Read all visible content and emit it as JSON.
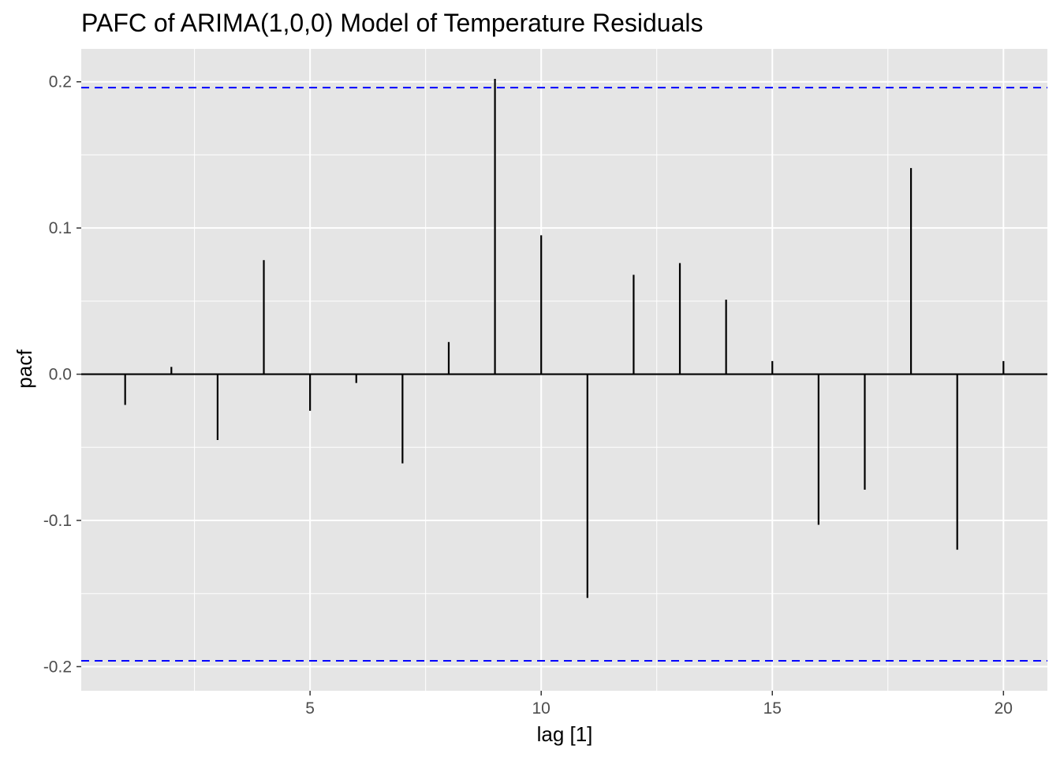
{
  "chart_data": {
    "type": "bar",
    "subtype": "pacf-spikes",
    "title": "PAFC of ARIMA(1,0,0) Model of Temperature Residuals",
    "xlabel": "lag [1]",
    "ylabel": "pacf",
    "x": [
      1,
      2,
      3,
      4,
      5,
      6,
      7,
      8,
      9,
      10,
      11,
      12,
      13,
      14,
      15,
      16,
      17,
      18,
      19,
      20
    ],
    "values": [
      -0.021,
      0.005,
      -0.045,
      0.078,
      -0.025,
      -0.006,
      -0.061,
      0.022,
      0.202,
      0.095,
      -0.153,
      0.068,
      0.076,
      0.051,
      0.009,
      -0.103,
      -0.079,
      0.141,
      -0.12,
      0.009
    ],
    "confidence_band": [
      -0.196,
      0.196
    ],
    "xlim": [
      0.05,
      20.95
    ],
    "ylim": [
      -0.2165,
      0.2225
    ],
    "x_ticks": [
      5,
      10,
      15,
      20
    ],
    "x_tick_labels": [
      "5",
      "10",
      "15",
      "20"
    ],
    "y_ticks": [
      -0.2,
      -0.1,
      0.0,
      0.1,
      0.2
    ],
    "y_tick_labels": [
      "-0.2",
      "-0.1",
      "0.0",
      "0.1",
      "0.2"
    ],
    "grid": true,
    "colors": {
      "panel_background": "#e5e5e5",
      "grid": "#ffffff",
      "spike": "#000000",
      "confidence_line": "#0000ff",
      "zero_line": "#000000"
    }
  }
}
